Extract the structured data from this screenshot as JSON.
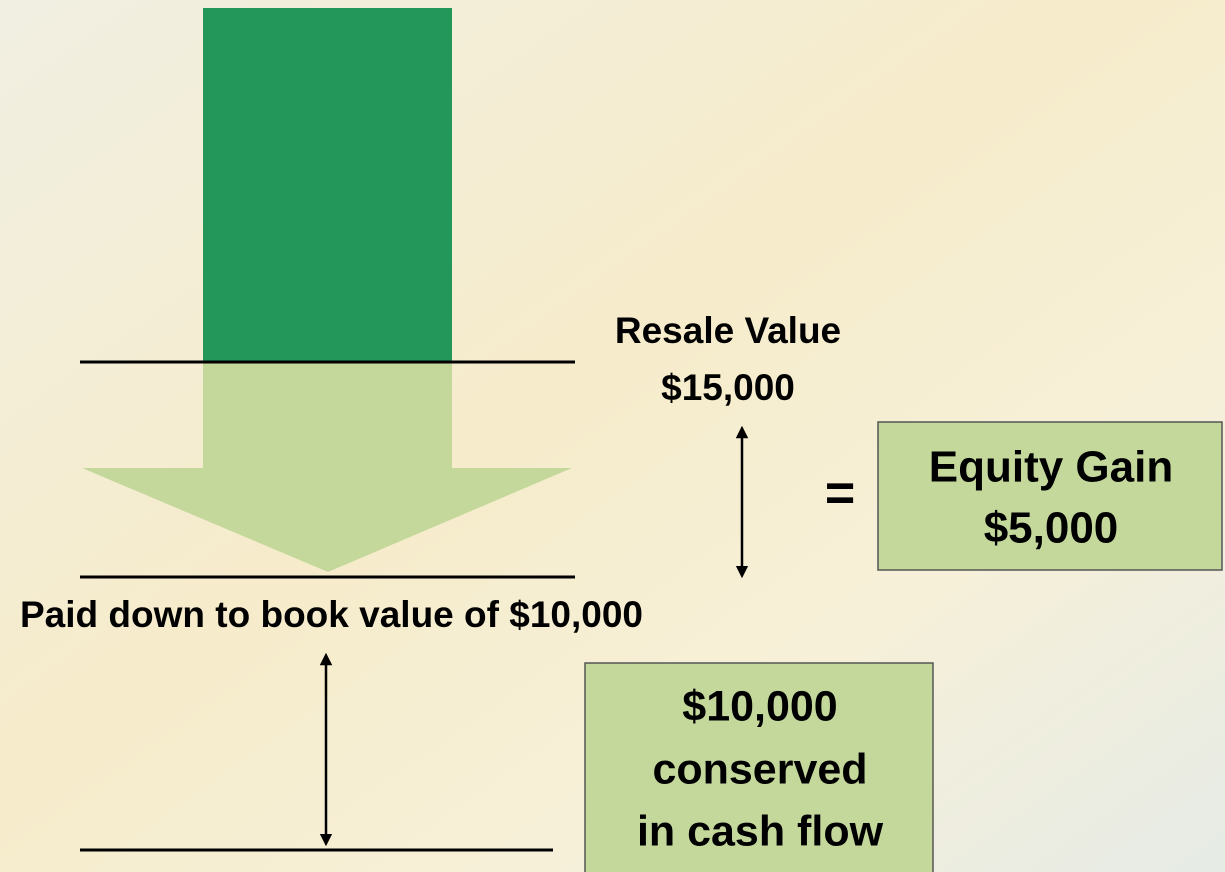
{
  "resale": {
    "label": "Resale Value",
    "value": "$15,000"
  },
  "equals": "=",
  "equity_box": {
    "title": "Equity Gain",
    "value": "$5,000"
  },
  "book_value": "Paid down to book value of $10,000",
  "cash_box": {
    "lines": [
      "$10,000",
      "conserved",
      "in cash flow"
    ]
  }
}
